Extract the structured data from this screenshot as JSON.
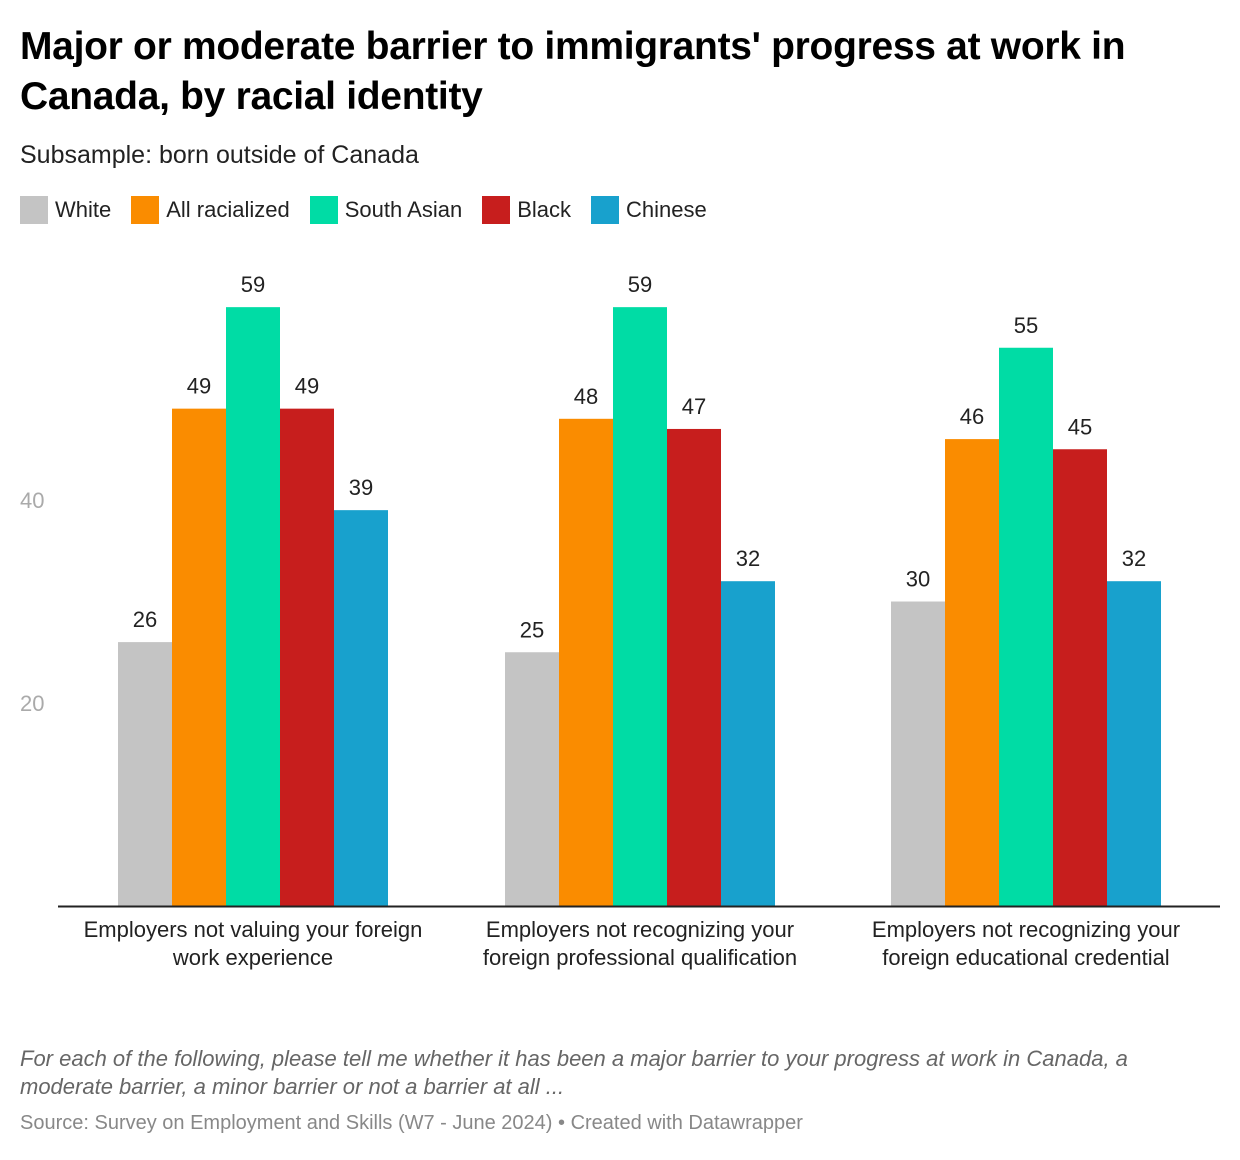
{
  "chart_data": {
    "type": "bar",
    "title": "Major or moderate barrier to immigrants' progress at work in Canada, by racial identity",
    "subtitle": "Subsample: born outside of Canada",
    "categories": [
      "Employers not valuing your foreign work experience",
      "Employers not recognizing your foreign professional qualification",
      "Employers not recognizing your foreign educational credential"
    ],
    "series": [
      {
        "name": "White",
        "color": "#c4c4c4",
        "values": [
          26,
          25,
          30
        ]
      },
      {
        "name": "All racialized",
        "color": "#fa8c00",
        "values": [
          49,
          48,
          46
        ]
      },
      {
        "name": "South Asian",
        "color": "#00dca5",
        "values": [
          59,
          59,
          55
        ]
      },
      {
        "name": "Black",
        "color": "#c71e1d",
        "values": [
          49,
          47,
          45
        ]
      },
      {
        "name": "Chinese",
        "color": "#18a1cd",
        "values": [
          39,
          32,
          32
        ]
      }
    ],
    "yticks": [
      "20",
      "40"
    ],
    "ylim": [
      0,
      60
    ],
    "grid": false,
    "legend": "top-left",
    "notes": "For each of the following, please tell me whether it has been a major barrier to your progress at work in Canada, a moderate barrier, a minor barrier or not a barrier at all ...",
    "source": "Source: Survey on Employment and Skills (W7 - June 2024) • Created with Datawrapper"
  }
}
